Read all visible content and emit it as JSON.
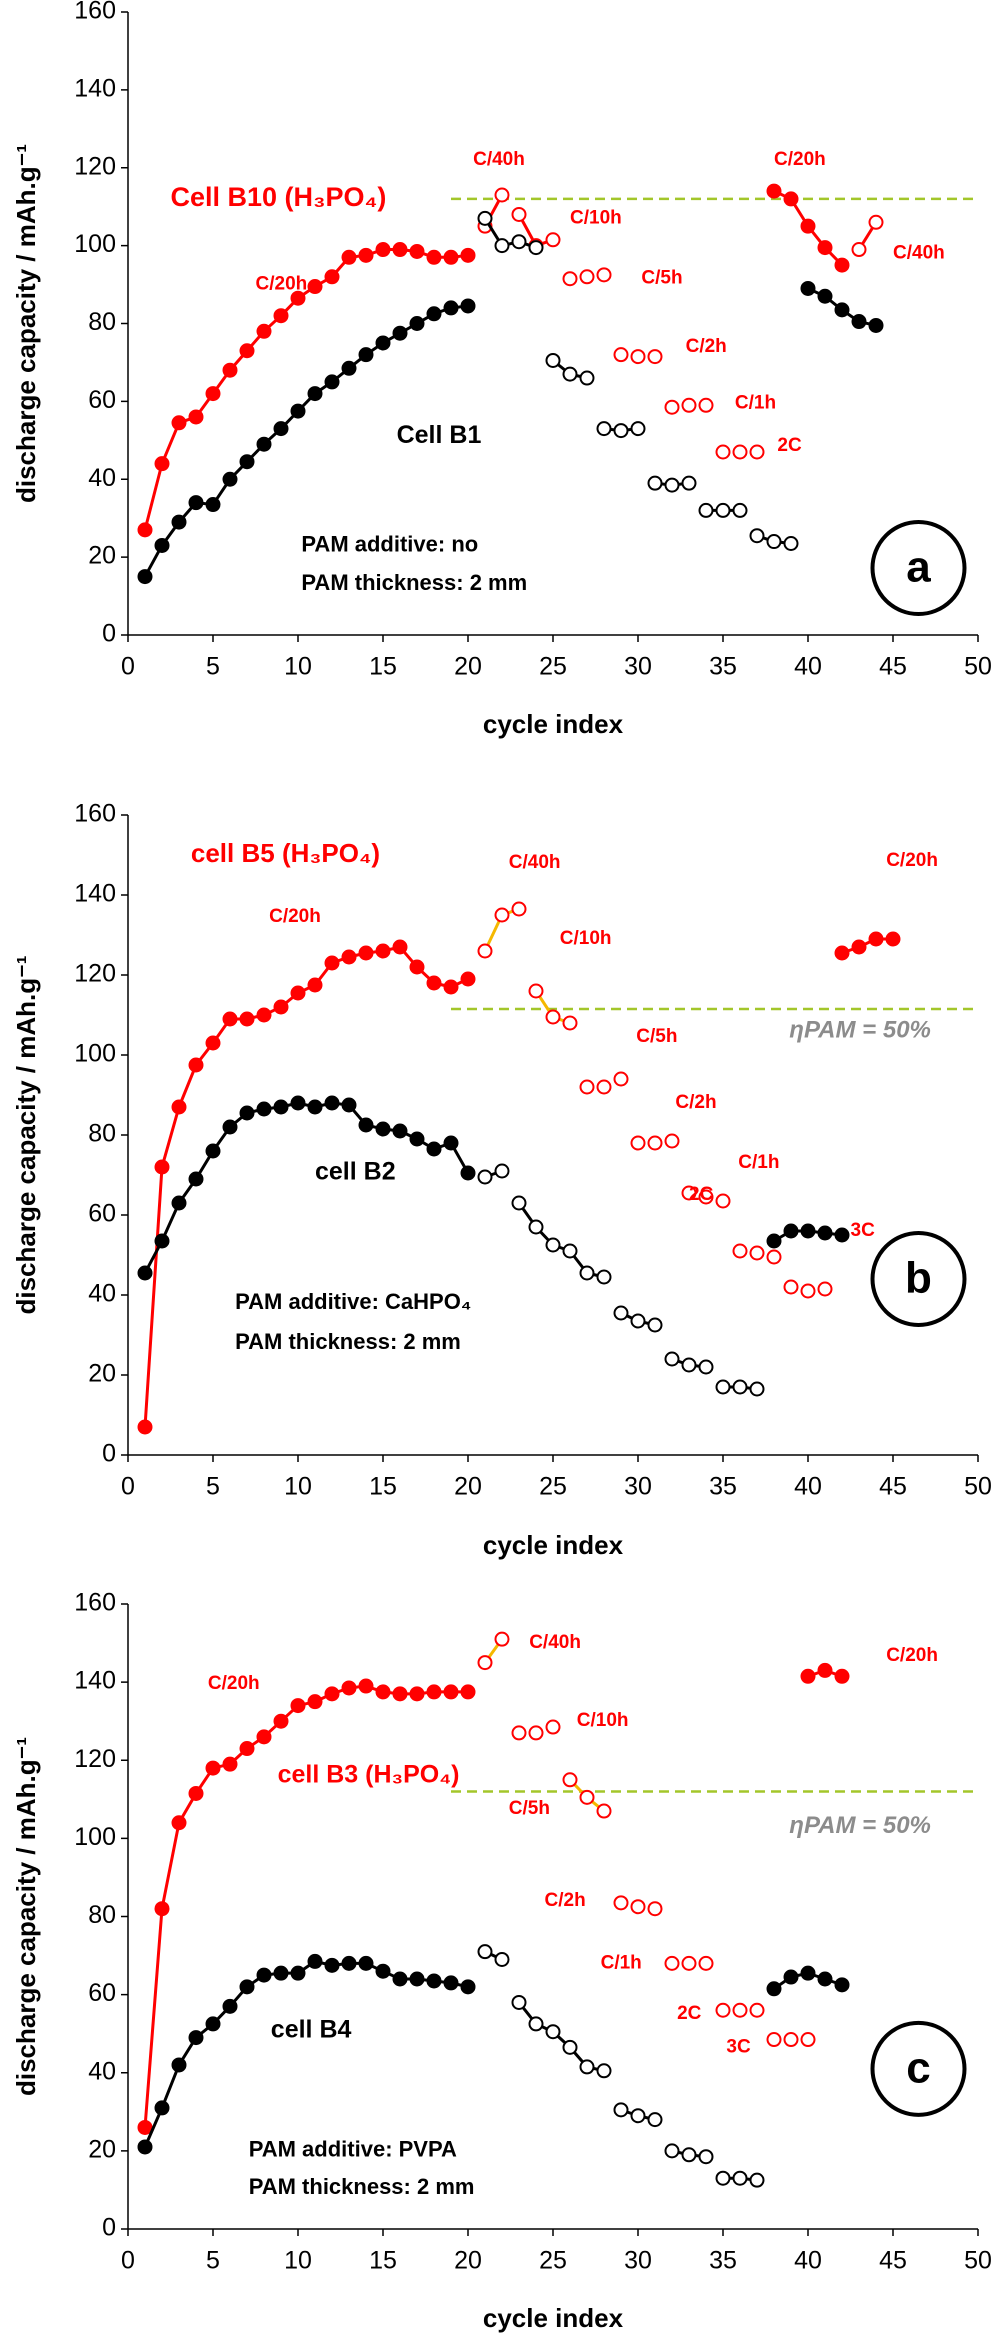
{
  "chart_data": [
    {
      "type": "scatter-line",
      "panel_label": "a",
      "ref_line": 112,
      "xlabel": "cycle index",
      "ylabel": "discharge capacity / mAh.g⁻¹",
      "xlim": [
        0,
        50
      ],
      "ylim": [
        0,
        160
      ],
      "xticks": [
        0,
        5,
        10,
        15,
        20,
        25,
        30,
        35,
        40,
        45,
        50
      ],
      "yticks": [
        0,
        20,
        40,
        60,
        80,
        100,
        120,
        140,
        160
      ],
      "annotations": [
        "Cell B10 (H₃PO₄)",
        "C/20h",
        "Cell B1",
        "PAM additive: no",
        "PAM thickness: 2 mm",
        "C/40h",
        "C/10h",
        "C/5h",
        "C/2h",
        "C/1h",
        "2C",
        "C/20h",
        "C/40h"
      ],
      "series": [
        {
          "color": "#ff0000",
          "marker": "filled",
          "line": "#ff0000",
          "x": [
            1,
            2,
            3,
            4,
            5,
            6,
            7,
            8,
            9,
            10,
            11,
            12,
            13,
            14,
            15,
            16,
            17,
            18,
            19,
            20
          ],
          "values": [
            27,
            44,
            54.5,
            56,
            62,
            68,
            73,
            78,
            82,
            86.5,
            89.5,
            92,
            97,
            97.5,
            99,
            99,
            98.5,
            97,
            97,
            97.5
          ]
        },
        {
          "color": "#000000",
          "marker": "filled",
          "line": "#000000",
          "x": [
            1,
            2,
            3,
            4,
            5,
            6,
            7,
            8,
            9,
            10,
            11,
            12,
            13,
            14,
            15,
            16,
            17,
            18,
            19,
            20
          ],
          "values": [
            15,
            23,
            29,
            34,
            33.5,
            40,
            44.5,
            49,
            53,
            57.5,
            62,
            65,
            68.5,
            72,
            75,
            77.5,
            80,
            82.5,
            84,
            84.5
          ]
        },
        {
          "color": "#ff0000",
          "marker": "open",
          "line": "#ff0000",
          "x": [
            21,
            22
          ],
          "values": [
            105,
            113
          ]
        },
        {
          "color": "#ff0000",
          "marker": "open",
          "line": "#ff0000",
          "x": [
            23,
            24,
            25
          ],
          "values": [
            108,
            100,
            101.5
          ]
        },
        {
          "color": "#000000",
          "marker": "open",
          "line": "#000000",
          "x": [
            21,
            22,
            23,
            24
          ],
          "values": [
            107,
            100,
            101,
            99.5
          ]
        },
        {
          "color": "#ff0000",
          "marker": "open",
          "line": null,
          "x": [
            26,
            27,
            28,
            29,
            30,
            31,
            32,
            33,
            34,
            35,
            36,
            37
          ],
          "values": [
            91.5,
            92,
            92.5,
            72,
            71.5,
            71.5,
            58.5,
            59,
            59,
            47,
            47,
            47
          ]
        },
        {
          "color": "#000000",
          "marker": "open",
          "line": "#000000",
          "x": [
            25,
            26,
            27
          ],
          "values": [
            70.5,
            67,
            66
          ]
        },
        {
          "color": "#000000",
          "marker": "open",
          "line": "#000000",
          "x": [
            28,
            29,
            30
          ],
          "values": [
            53,
            52.5,
            53
          ]
        },
        {
          "color": "#000000",
          "marker": "open",
          "line": "#000000",
          "x": [
            31,
            32,
            33
          ],
          "values": [
            39,
            38.5,
            39
          ]
        },
        {
          "color": "#000000",
          "marker": "open",
          "line": "#000000",
          "x": [
            34,
            35,
            36
          ],
          "values": [
            32,
            32,
            32
          ]
        },
        {
          "color": "#000000",
          "marker": "open",
          "line": "#000000",
          "x": [
            37,
            38,
            39
          ],
          "values": [
            25.5,
            24,
            23.5
          ]
        },
        {
          "color": "#ff0000",
          "marker": "filled",
          "line": "#ff0000",
          "x": [
            38,
            39,
            40,
            41,
            42
          ],
          "values": [
            114,
            112,
            105,
            99.5,
            95
          ]
        },
        {
          "color": "#ff0000",
          "marker": "open",
          "line": "#ff0000",
          "x": [
            43,
            44
          ],
          "values": [
            99,
            106
          ]
        },
        {
          "color": "#000000",
          "marker": "filled",
          "line": "#000000",
          "x": [
            40,
            41,
            42,
            43,
            44
          ],
          "values": [
            89,
            87,
            83.5,
            80.5,
            79.5
          ]
        }
      ]
    },
    {
      "type": "scatter-line",
      "panel_label": "b",
      "ref_line": 111.5,
      "xlabel": "cycle index",
      "ylabel": "discharge capacity / mAh.g⁻¹",
      "xlim": [
        0,
        50
      ],
      "ylim": [
        0,
        160
      ],
      "xticks": [
        0,
        5,
        10,
        15,
        20,
        25,
        30,
        35,
        40,
        45,
        50
      ],
      "yticks": [
        0,
        20,
        40,
        60,
        80,
        100,
        120,
        140,
        160
      ],
      "annotations": [
        "cell B5 (H₃PO₄)",
        "C/20h",
        "C/40h",
        "C/10h",
        "C/5h",
        "C/2h",
        "C/1h",
        "2C",
        "3C",
        "C/20h",
        "ηPAM = 50%",
        "cell B2",
        "PAM additive: CaHPO₄",
        "PAM thickness: 2 mm"
      ],
      "series": [
        {
          "color": "#ff0000",
          "marker": "filled",
          "line": "#ff0000",
          "x": [
            1,
            2,
            3,
            4,
            5,
            6,
            7,
            8,
            9,
            10,
            11,
            12,
            13,
            14,
            15,
            16,
            17,
            18,
            19,
            20
          ],
          "values": [
            7,
            72,
            87,
            97.5,
            103,
            109,
            109,
            110,
            112,
            115.5,
            117.5,
            123,
            124.5,
            125.5,
            126,
            127,
            122,
            118,
            117,
            119
          ]
        },
        {
          "color": "#000000",
          "marker": "filled",
          "line": "#000000",
          "x": [
            1,
            2,
            3,
            4,
            5,
            6,
            7,
            8,
            9,
            10,
            11,
            12,
            13,
            14,
            15,
            16,
            17,
            18,
            19,
            20
          ],
          "values": [
            45.5,
            53.5,
            63,
            69,
            76,
            82,
            85.5,
            86.5,
            87,
            88,
            87,
            88,
            87.5,
            82.5,
            81.5,
            81,
            79,
            76.5,
            78,
            70.5
          ]
        },
        {
          "color": "#ff0000",
          "marker": "open",
          "line": "#f5b800",
          "x": [
            21,
            22,
            23
          ],
          "values": [
            126,
            135,
            136.5
          ]
        },
        {
          "color": "#ff0000",
          "marker": "open",
          "line": "#f5b800",
          "x": [
            24,
            25,
            26
          ],
          "values": [
            116,
            109.5,
            108
          ]
        },
        {
          "color": "#ff0000",
          "marker": "open",
          "line": null,
          "x": [
            27,
            28,
            29,
            30,
            31,
            32,
            33,
            34,
            35,
            36,
            37,
            38,
            39,
            40,
            41
          ],
          "values": [
            92,
            92,
            94,
            78,
            78,
            78.5,
            65.5,
            64.5,
            63.5,
            51,
            50.5,
            49.5,
            42,
            41,
            41.5
          ]
        },
        {
          "color": "#000000",
          "marker": "open",
          "line": "#000000",
          "x": [
            21,
            22
          ],
          "values": [
            69.5,
            71
          ]
        },
        {
          "color": "#000000",
          "marker": "open",
          "line": "#000000",
          "x": [
            23,
            24,
            25,
            26,
            27,
            28
          ],
          "values": [
            63,
            57,
            52.5,
            51,
            45.5,
            44.5
          ]
        },
        {
          "color": "#000000",
          "marker": "open",
          "line": "#000000",
          "x": [
            29,
            30,
            31
          ],
          "values": [
            35.5,
            33.5,
            32.5
          ]
        },
        {
          "color": "#000000",
          "marker": "open",
          "line": "#000000",
          "x": [
            32,
            33,
            34
          ],
          "values": [
            24,
            22.5,
            22
          ]
        },
        {
          "color": "#000000",
          "marker": "open",
          "line": "#000000",
          "x": [
            35,
            36,
            37
          ],
          "values": [
            17,
            17,
            16.5
          ]
        },
        {
          "color": "#000000",
          "marker": "filled",
          "line": "#000000",
          "x": [
            38,
            39,
            40,
            41,
            42
          ],
          "values": [
            53.5,
            56,
            56,
            55.5,
            55
          ]
        },
        {
          "color": "#ff0000",
          "marker": "filled",
          "line": "#ff0000",
          "x": [
            42,
            43,
            44,
            45
          ],
          "values": [
            125.5,
            127,
            129,
            129
          ]
        }
      ]
    },
    {
      "type": "scatter-line",
      "panel_label": "c",
      "ref_line": 112,
      "xlabel": "cycle index",
      "ylabel": "discharge capacity / mAh.g⁻¹",
      "xlim": [
        0,
        50
      ],
      "ylim": [
        0,
        160
      ],
      "xticks": [
        0,
        5,
        10,
        15,
        20,
        25,
        30,
        35,
        40,
        45,
        50
      ],
      "yticks": [
        0,
        20,
        40,
        60,
        80,
        100,
        120,
        140,
        160
      ],
      "annotations": [
        "C/20h",
        "C/40h",
        "C/10h",
        "cell B3 (H₃PO₄)",
        "C/5h",
        "C/2h",
        "C/1h",
        "2C",
        "3C",
        "C/20h",
        "ηPAM = 50%",
        "cell B4",
        "PAM additive: PVPA",
        "PAM thickness: 2 mm"
      ],
      "series": [
        {
          "color": "#ff0000",
          "marker": "filled",
          "line": "#ff0000",
          "x": [
            1,
            2,
            3,
            4,
            5,
            6,
            7,
            8,
            9,
            10,
            11,
            12,
            13,
            14,
            15,
            16,
            17,
            18,
            19,
            20
          ],
          "values": [
            26,
            82,
            104,
            111.5,
            118,
            119,
            123,
            126,
            130,
            134,
            135,
            137,
            138.5,
            139,
            137.5,
            137,
            137,
            137.5,
            137.5,
            137.5
          ]
        },
        {
          "color": "#000000",
          "marker": "filled",
          "line": "#000000",
          "x": [
            1,
            2,
            3,
            4,
            5,
            6,
            7,
            8,
            9,
            10,
            11,
            12,
            13,
            14,
            15,
            16,
            17,
            18,
            19,
            20
          ],
          "values": [
            21,
            31,
            42,
            49,
            52.5,
            57,
            62,
            65,
            65.5,
            65.5,
            68.5,
            67.5,
            68,
            68,
            66,
            64,
            64,
            63.5,
            63,
            62
          ]
        },
        {
          "color": "#ff0000",
          "marker": "open",
          "line": "#f5b800",
          "x": [
            21,
            22
          ],
          "values": [
            145,
            151
          ]
        },
        {
          "color": "#ff0000",
          "marker": "open",
          "line": null,
          "x": [
            23,
            24,
            25
          ],
          "values": [
            127,
            127,
            128.5
          ]
        },
        {
          "color": "#ff0000",
          "marker": "open",
          "line": "#f5b800",
          "x": [
            26,
            27,
            28
          ],
          "values": [
            115,
            110.5,
            107
          ]
        },
        {
          "color": "#ff0000",
          "marker": "open",
          "line": null,
          "x": [
            29,
            30,
            31,
            32,
            33,
            34,
            35,
            36,
            37,
            38,
            39,
            40
          ],
          "values": [
            83.5,
            82.5,
            82,
            68,
            68,
            68,
            56,
            56,
            56,
            48.5,
            48.5,
            48.5
          ]
        },
        {
          "color": "#000000",
          "marker": "open",
          "line": "#000000",
          "x": [
            21,
            22
          ],
          "values": [
            71,
            69
          ]
        },
        {
          "color": "#000000",
          "marker": "open",
          "line": "#000000",
          "x": [
            23,
            24,
            25,
            26,
            27,
            28
          ],
          "values": [
            58,
            52.5,
            50.5,
            46.5,
            41.5,
            40.5
          ]
        },
        {
          "color": "#000000",
          "marker": "open",
          "line": "#000000",
          "x": [
            29,
            30,
            31
          ],
          "values": [
            30.5,
            29,
            28
          ]
        },
        {
          "color": "#000000",
          "marker": "open",
          "line": "#000000",
          "x": [
            32,
            33,
            34
          ],
          "values": [
            20,
            19,
            18.5
          ]
        },
        {
          "color": "#000000",
          "marker": "open",
          "line": "#000000",
          "x": [
            35,
            36,
            37
          ],
          "values": [
            13,
            13,
            12.5
          ]
        },
        {
          "color": "#000000",
          "marker": "filled",
          "line": "#000000",
          "x": [
            38,
            39,
            40,
            41,
            42
          ],
          "values": [
            61.5,
            64.5,
            65.5,
            64,
            62.5
          ]
        },
        {
          "color": "#ff0000",
          "marker": "filled",
          "line": "#ff0000",
          "x": [
            40,
            41,
            42
          ],
          "values": [
            141.5,
            143,
            141.5
          ]
        }
      ]
    }
  ]
}
